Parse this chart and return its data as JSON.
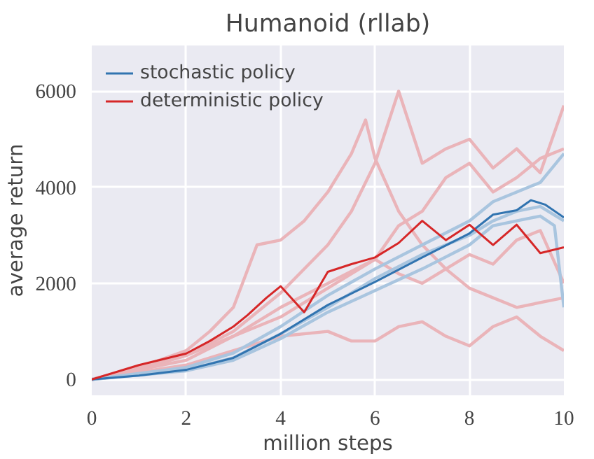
{
  "chart_data": {
    "type": "line",
    "title": "Humanoid (rllab)",
    "xlabel": "million steps",
    "ylabel": "average return",
    "xlim": [
      0,
      10
    ],
    "ylim": [
      -330,
      6950
    ],
    "xticks": [
      0,
      2,
      4,
      6,
      8,
      10
    ],
    "yticks": [
      0,
      2000,
      4000,
      6000
    ],
    "grid": true,
    "legend": "top left",
    "marker": "none",
    "line_style": "solid",
    "series": [
      {
        "color": "#eab4b9",
        "x": [
          0,
          1,
          2,
          2.5,
          3,
          3.5,
          4,
          4.5,
          5,
          5.5,
          5.8,
          6,
          6.5,
          7,
          7.5,
          8,
          9,
          10
        ],
        "values": [
          0,
          250,
          600,
          1000,
          1500,
          2800,
          2900,
          3300,
          3900,
          4700,
          5400,
          4600,
          3500,
          2800,
          2300,
          1900,
          1500,
          1700
        ]
      },
      {
        "color": "#eab4b9",
        "x": [
          0,
          1,
          2,
          3,
          4,
          5,
          5.5,
          6,
          6.5,
          7,
          7.5,
          8,
          8.5,
          9,
          9.5,
          10
        ],
        "values": [
          0,
          200,
          500,
          1000,
          1800,
          2800,
          3500,
          4500,
          6000,
          4500,
          4800,
          5000,
          4400,
          4800,
          4300,
          5700
        ]
      },
      {
        "color": "#eab4b9",
        "x": [
          0,
          1,
          2,
          3,
          4,
          5,
          5.5,
          6,
          6.5,
          7,
          7.5,
          8,
          8.5,
          9,
          9.5,
          10
        ],
        "values": [
          0,
          150,
          300,
          600,
          900,
          1000,
          800,
          800,
          1100,
          1200,
          900,
          700,
          1100,
          1300,
          900,
          600
        ]
      },
      {
        "color": "#eab4b9",
        "x": [
          0,
          1,
          2,
          3,
          4,
          5,
          6,
          6.5,
          7,
          7.5,
          8,
          8.5,
          9,
          9.5,
          10
        ],
        "values": [
          0,
          200,
          400,
          900,
          1500,
          2000,
          2500,
          3200,
          3500,
          4200,
          4500,
          3900,
          4200,
          4600,
          4800
        ]
      },
      {
        "color": "#eab4b9",
        "x": [
          0,
          1,
          2,
          3,
          4,
          5,
          6,
          6.5,
          7,
          7.5,
          8,
          8.5,
          9,
          9.5,
          10
        ],
        "values": [
          0,
          250,
          500,
          900,
          1300,
          1900,
          2500,
          2200,
          2000,
          2300,
          2600,
          2400,
          2900,
          3100,
          2000
        ]
      },
      {
        "color": "#a9c5df",
        "x": [
          0,
          2,
          3,
          4,
          5,
          6,
          7,
          8,
          8.5,
          9,
          9.5,
          10
        ],
        "values": [
          0,
          250,
          550,
          1100,
          1750,
          2300,
          2800,
          3300,
          3700,
          3900,
          4100,
          4700
        ]
      },
      {
        "color": "#a9c5df",
        "x": [
          0,
          2,
          3,
          4,
          5,
          6,
          7,
          8,
          8.5,
          9,
          9.5,
          9.8,
          10
        ],
        "values": [
          0,
          180,
          400,
          850,
          1400,
          1850,
          2300,
          2800,
          3200,
          3300,
          3400,
          3200,
          1500
        ]
      },
      {
        "color": "#a9c5df",
        "x": [
          0,
          2,
          3,
          4,
          5,
          6,
          7,
          8,
          8.5,
          9,
          9.5,
          10
        ],
        "values": [
          0,
          200,
          450,
          950,
          1500,
          2100,
          2600,
          3000,
          3300,
          3500,
          3600,
          3300
        ]
      },
      {
        "name": "stochastic policy",
        "color": "#3174b0",
        "x": [
          0,
          1,
          2,
          3,
          4,
          5,
          6,
          7,
          8,
          8.5,
          9,
          9.3,
          9.6,
          10
        ],
        "values": [
          0,
          80,
          200,
          450,
          950,
          1550,
          2030,
          2540,
          3040,
          3430,
          3520,
          3730,
          3640,
          3370
        ]
      },
      {
        "name": "deterministic policy",
        "color": "#d62728",
        "x": [
          0,
          1,
          2,
          2.5,
          3,
          3.3,
          3.7,
          4,
          4.5,
          5,
          5.5,
          6,
          6.5,
          7,
          7.5,
          8,
          8.5,
          9,
          9.5,
          10
        ],
        "values": [
          0,
          300,
          540,
          800,
          1100,
          1340,
          1700,
          1940,
          1400,
          2240,
          2400,
          2540,
          2840,
          3300,
          2900,
          3220,
          2800,
          3220,
          2630,
          2750
        ]
      }
    ]
  }
}
